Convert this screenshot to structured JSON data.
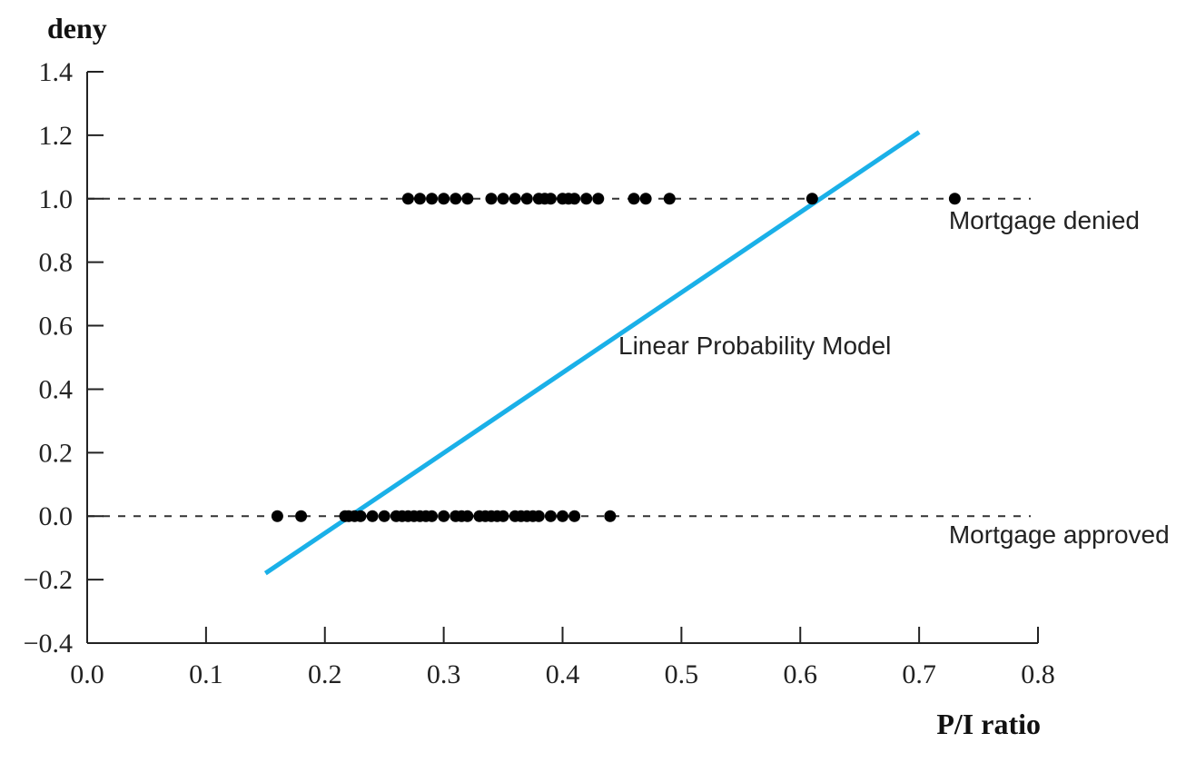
{
  "chart_data": {
    "type": "scatter",
    "ylabel": "deny",
    "xlabel": "P/I ratio",
    "xlim": [
      0.0,
      0.8
    ],
    "ylim": [
      -0.4,
      1.4
    ],
    "xticks": [
      "0.0",
      "0.1",
      "0.2",
      "0.3",
      "0.4",
      "0.5",
      "0.6",
      "0.7",
      "0.8"
    ],
    "yticks": [
      "-0.4",
      "-0.2",
      "0.0",
      "0.2",
      "0.4",
      "0.6",
      "0.8",
      "1.0",
      "1.2",
      "1.4"
    ],
    "grid": false,
    "reference_lines": [
      {
        "y": 1.0,
        "style": "dashed"
      },
      {
        "y": 0.0,
        "style": "dashed"
      }
    ],
    "series": [
      {
        "kind": "points",
        "color": "#000000",
        "points": [
          [
            0.27,
            1
          ],
          [
            0.28,
            1
          ],
          [
            0.29,
            1
          ],
          [
            0.3,
            1
          ],
          [
            0.31,
            1
          ],
          [
            0.32,
            1
          ],
          [
            0.34,
            1
          ],
          [
            0.35,
            1
          ],
          [
            0.36,
            1
          ],
          [
            0.37,
            1
          ],
          [
            0.38,
            1
          ],
          [
            0.385,
            1
          ],
          [
            0.39,
            1
          ],
          [
            0.4,
            1
          ],
          [
            0.405,
            1
          ],
          [
            0.41,
            1
          ],
          [
            0.42,
            1
          ],
          [
            0.43,
            1
          ],
          [
            0.46,
            1
          ],
          [
            0.47,
            1
          ],
          [
            0.49,
            1
          ],
          [
            0.61,
            1
          ],
          [
            0.73,
            1
          ],
          [
            0.16,
            0
          ],
          [
            0.18,
            0
          ],
          [
            0.217,
            0
          ],
          [
            0.22,
            0
          ],
          [
            0.225,
            0
          ],
          [
            0.23,
            0
          ],
          [
            0.24,
            0
          ],
          [
            0.25,
            0
          ],
          [
            0.26,
            0
          ],
          [
            0.265,
            0
          ],
          [
            0.27,
            0
          ],
          [
            0.275,
            0
          ],
          [
            0.28,
            0
          ],
          [
            0.285,
            0
          ],
          [
            0.29,
            0
          ],
          [
            0.3,
            0
          ],
          [
            0.31,
            0
          ],
          [
            0.315,
            0
          ],
          [
            0.32,
            0
          ],
          [
            0.33,
            0
          ],
          [
            0.335,
            0
          ],
          [
            0.34,
            0
          ],
          [
            0.345,
            0
          ],
          [
            0.35,
            0
          ],
          [
            0.36,
            0
          ],
          [
            0.365,
            0
          ],
          [
            0.37,
            0
          ],
          [
            0.375,
            0
          ],
          [
            0.38,
            0
          ],
          [
            0.39,
            0
          ],
          [
            0.4,
            0
          ],
          [
            0.41,
            0
          ],
          [
            0.44,
            0
          ]
        ]
      },
      {
        "kind": "line",
        "color": "#1ab0e8",
        "x": [
          0.15,
          0.7
        ],
        "y": [
          -0.18,
          1.21
        ]
      }
    ],
    "annotations": [
      {
        "text": "Mortgage denied",
        "x": 0.725,
        "y": 0.905
      },
      {
        "text": "Linear Probability Model",
        "x": 0.447,
        "y": 0.51
      },
      {
        "text": "Mortgage approved",
        "x": 0.725,
        "y": -0.085
      }
    ]
  }
}
